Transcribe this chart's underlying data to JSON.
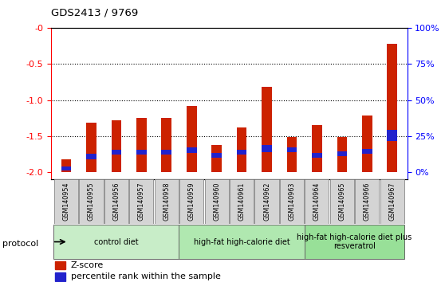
{
  "title": "GDS2413 / 9769",
  "samples": [
    "GSM140954",
    "GSM140955",
    "GSM140956",
    "GSM140957",
    "GSM140958",
    "GSM140959",
    "GSM140960",
    "GSM140961",
    "GSM140962",
    "GSM140963",
    "GSM140964",
    "GSM140965",
    "GSM140966",
    "GSM140967"
  ],
  "zscore": [
    -1.82,
    -1.32,
    -1.28,
    -1.25,
    -1.25,
    -1.08,
    -1.63,
    -1.38,
    -0.82,
    -1.52,
    -1.35,
    -1.52,
    -1.22,
    -0.22
  ],
  "pct_bottom": [
    -1.98,
    -1.82,
    -1.76,
    -1.76,
    -1.76,
    -1.74,
    -1.8,
    -1.76,
    -1.72,
    -1.73,
    -1.8,
    -1.78,
    -1.75,
    -1.57
  ],
  "pct_height": [
    0.05,
    0.07,
    0.07,
    0.07,
    0.07,
    0.08,
    0.06,
    0.07,
    0.09,
    0.07,
    0.06,
    0.07,
    0.07,
    0.15
  ],
  "bar_color_red": "#cc2200",
  "bar_color_blue": "#2222cc",
  "bar_width": 0.4,
  "ylim": [
    -2.1,
    0.0
  ],
  "yticks_left": [
    -2.0,
    -1.5,
    -1.0,
    -0.5,
    0.0
  ],
  "yticks_right_pos": [
    -2.0,
    -1.5,
    -1.0,
    -0.5,
    0.0
  ],
  "yticks_right_labels": [
    "0%",
    "25%",
    "50%",
    "75%",
    "100%"
  ],
  "bar_bottom": -2.0,
  "groups": [
    {
      "label": "control diet",
      "start": 0,
      "end": 5,
      "color": "#c8edc8"
    },
    {
      "label": "high-fat high-calorie diet",
      "start": 5,
      "end": 10,
      "color": "#b0e8b0"
    },
    {
      "label": "high-fat high-calorie diet plus\nresveratrol",
      "start": 10,
      "end": 14,
      "color": "#98e098"
    }
  ],
  "protocol_label": "protocol",
  "legend_zscore": "Z-score",
  "legend_percentile": "percentile rank within the sample"
}
